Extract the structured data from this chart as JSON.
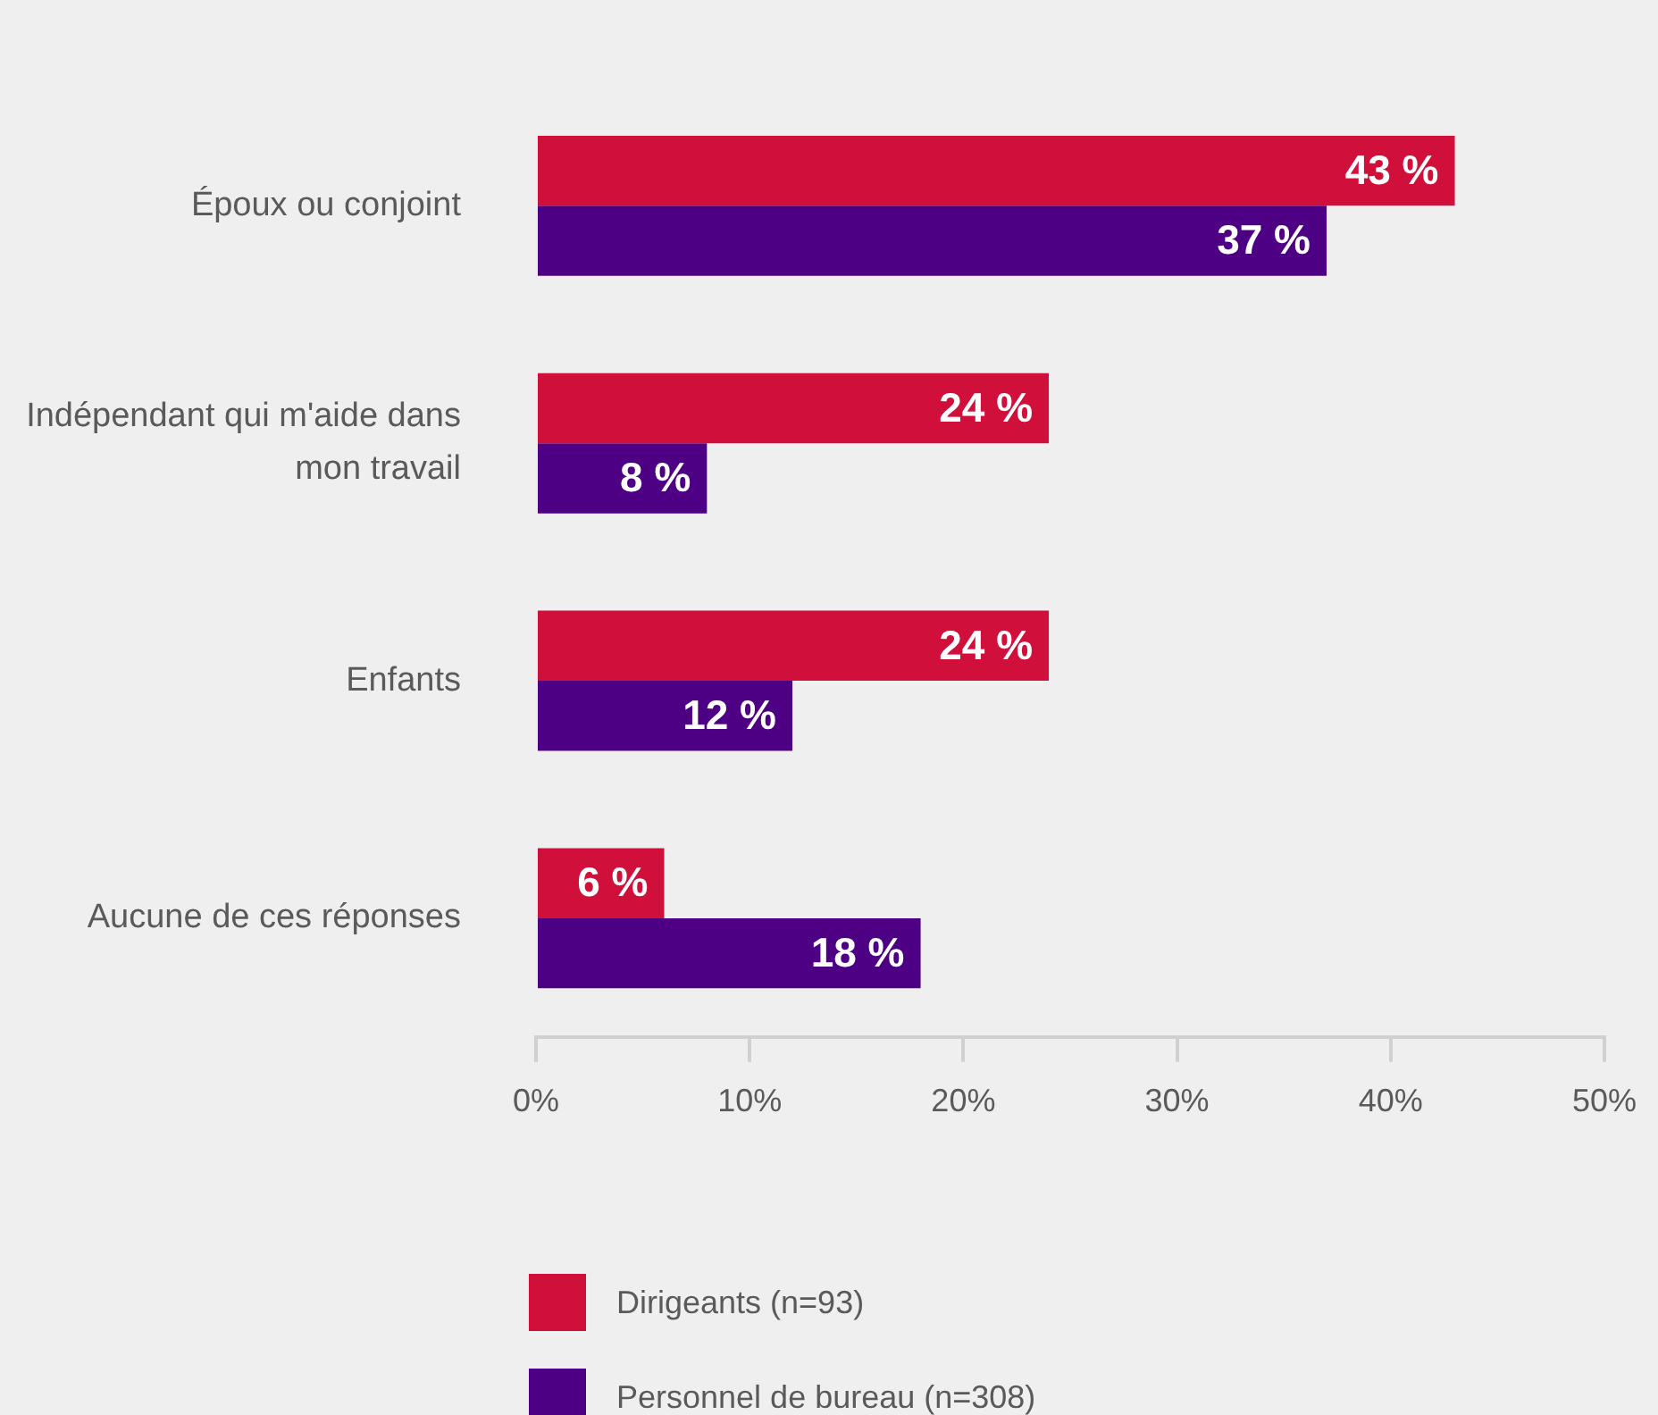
{
  "chart_data": {
    "type": "bar",
    "orientation": "horizontal",
    "categories": [
      "Époux ou conjoint",
      "Indépendant qui m'aide dans mon travail",
      "Enfants",
      "Aucune de ces réponses"
    ],
    "series": [
      {
        "name": "Dirigeants (n=93)",
        "color": "#d0103a",
        "values": [
          43,
          24,
          24,
          6
        ],
        "value_labels": [
          "43 %",
          "24 %",
          "24 %",
          "6 %"
        ]
      },
      {
        "name": "Personnel de bureau (n=308)",
        "color": "#4e0085",
        "values": [
          37,
          8,
          12,
          18
        ],
        "value_labels": [
          "37 %",
          "8 %",
          "12 %",
          "18 %"
        ]
      }
    ],
    "xlim": [
      0,
      50
    ],
    "xticks": [
      {
        "value": 0,
        "label": "0%"
      },
      {
        "value": 10,
        "label": "10%"
      },
      {
        "value": 20,
        "label": "20%"
      },
      {
        "value": 30,
        "label": "30%"
      },
      {
        "value": 40,
        "label": "40%"
      },
      {
        "value": 50,
        "label": "50%"
      }
    ],
    "grid": false,
    "legend": "bottom"
  }
}
